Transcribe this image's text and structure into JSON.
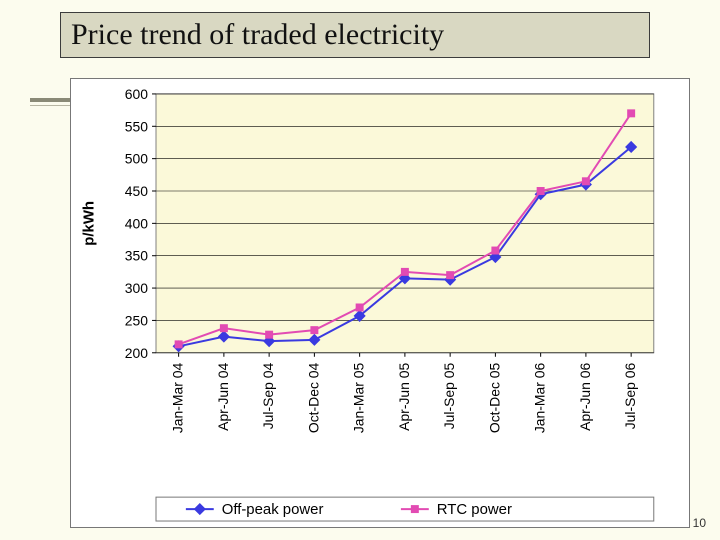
{
  "page": {
    "number": "10"
  },
  "title": {
    "text": "Price trend of traded electricity"
  },
  "chart": {
    "type": "line",
    "background_color": "#fbf9d9",
    "outer_box_color": "#ffffff",
    "border_color": "#777777",
    "grid_color": "#000000",
    "plot_border_color": "#808080",
    "ylabel": "p/kWh",
    "ylim": [
      200,
      600
    ],
    "ytick_step": 50,
    "yticks": [
      "200",
      "250",
      "300",
      "350",
      "400",
      "450",
      "500",
      "550",
      "600"
    ],
    "categories": [
      "Jan-Mar 04",
      "Apr-Jun 04",
      "Jul-Sep 04",
      "Oct-Dec 04",
      "Jan-Mar 05",
      "Apr-Jun 05",
      "Jul-Sep 05",
      "Oct-Dec 05",
      "Jan-Mar 06",
      "Apr-Jun 06",
      "Jul-Sep 06"
    ],
    "series": [
      {
        "name": "Off-peak power",
        "color": "#3a3ae0",
        "marker": "diamond",
        "marker_size": 7,
        "line_width": 2,
        "values": [
          210,
          225,
          218,
          220,
          257,
          315,
          313,
          348,
          445,
          460,
          518
        ]
      },
      {
        "name": "RTC power",
        "color": "#e24bb3",
        "marker": "square",
        "marker_size": 7,
        "line_width": 2,
        "values": [
          213,
          238,
          228,
          235,
          270,
          325,
          320,
          358,
          450,
          465,
          570
        ]
      }
    ],
    "legend": {
      "position": "bottom"
    },
    "fonts": {
      "tick_fontsize": 14,
      "ylabel_fontsize": 15,
      "ylabel_weight": "bold",
      "legend_fontsize": 15
    }
  }
}
